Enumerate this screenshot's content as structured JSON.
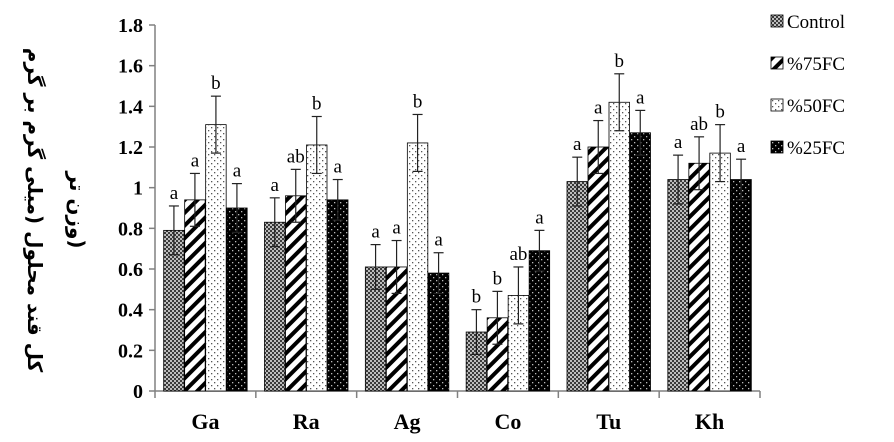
{
  "chart_data": {
    "type": "bar",
    "title": "",
    "xlabel": "",
    "ylabel_lines": [
      "کل قند محلول (میلی گرم بر گرم",
      "وزن تر)"
    ],
    "ylim": [
      0,
      1.8
    ],
    "yticks": [
      "0",
      "0.2",
      "0.4",
      "0.6",
      "0.8",
      "1",
      "1.2",
      "1.4",
      "1.6",
      "1.8"
    ],
    "categories": [
      "Ga",
      "Ra",
      "Ag",
      "Co",
      "Tu",
      "Kh"
    ],
    "legend_position": "right",
    "grid": false,
    "series": [
      {
        "name": "Control",
        "pattern": "dots-dense",
        "values": [
          0.79,
          0.83,
          0.61,
          0.29,
          1.03,
          1.04
        ],
        "errors": [
          0.12,
          0.12,
          0.11,
          0.11,
          0.12,
          0.12
        ],
        "letters": [
          "a",
          "a",
          "a",
          "b",
          "a",
          "a"
        ]
      },
      {
        "name": "%75FC",
        "pattern": "diagonal-stripes",
        "values": [
          0.94,
          0.96,
          0.61,
          0.36,
          1.2,
          1.12
        ],
        "errors": [
          0.13,
          0.13,
          0.13,
          0.13,
          0.13,
          0.13
        ],
        "letters": [
          "a",
          "ab",
          "a",
          "b",
          "a",
          "ab"
        ]
      },
      {
        "name": "%50FC",
        "pattern": "dots-sparse",
        "values": [
          1.31,
          1.21,
          1.22,
          0.47,
          1.42,
          1.17
        ],
        "errors": [
          0.14,
          0.14,
          0.14,
          0.14,
          0.14,
          0.14
        ],
        "letters": [
          "b",
          "b",
          "b",
          "ab",
          "b",
          "b"
        ]
      },
      {
        "name": "%25FC",
        "pattern": "dots-on-black",
        "values": [
          0.9,
          0.94,
          0.58,
          0.69,
          1.27,
          1.04
        ],
        "errors": [
          0.12,
          0.1,
          0.1,
          0.1,
          0.11,
          0.1
        ],
        "letters": [
          "a",
          "a",
          "a",
          "a",
          "a",
          "a"
        ]
      }
    ]
  }
}
